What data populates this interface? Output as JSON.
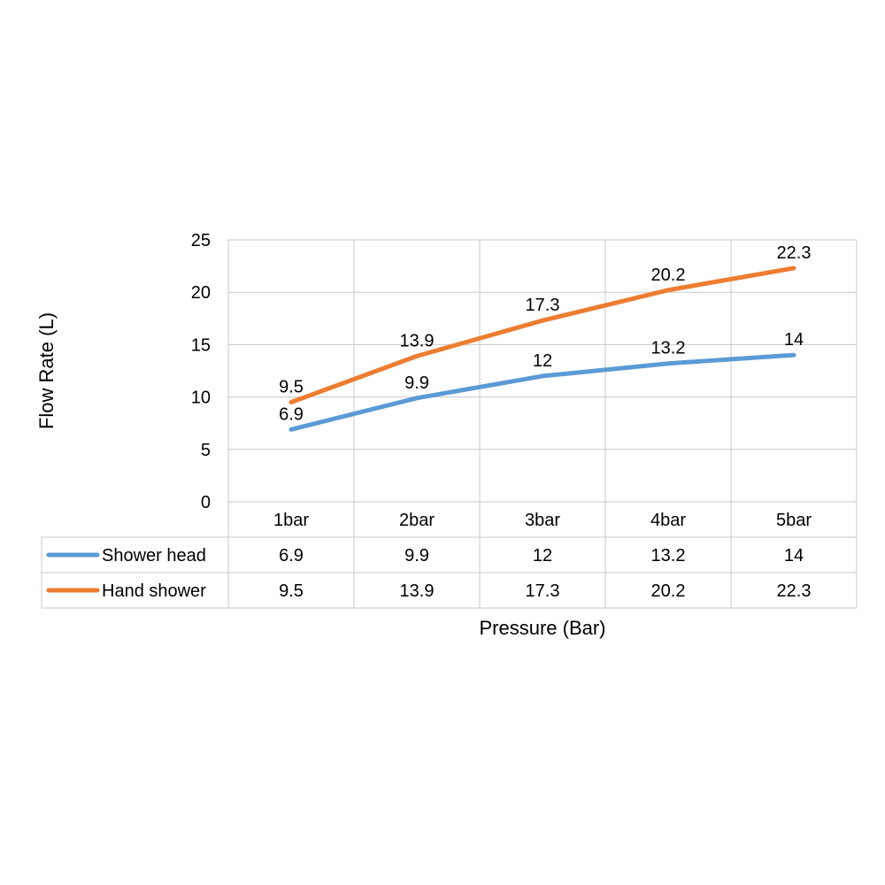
{
  "chart_data": {
    "type": "line",
    "title": "",
    "xlabel": "Pressure (Bar)",
    "ylabel": "Flow Rate (L)",
    "categories": [
      "1bar",
      "2bar",
      "3bar",
      "4bar",
      "5bar"
    ],
    "ylim": [
      0,
      25
    ],
    "yticks": [
      "0",
      "5",
      "10",
      "15",
      "20",
      "25"
    ],
    "grid": true,
    "legend_placement": "data-table-bottom",
    "series": [
      {
        "name": "Shower head",
        "color": "#5b9bd5",
        "values": [
          6.9,
          9.9,
          12,
          13.2,
          14
        ],
        "labels": [
          "6.9",
          "9.9",
          "12",
          "13.2",
          "14"
        ]
      },
      {
        "name": "Hand shower",
        "color": "#ed7d31",
        "values": [
          9.5,
          13.9,
          17.3,
          20.2,
          22.3
        ],
        "labels": [
          "9.5",
          "13.9",
          "17.3",
          "20.2",
          "22.3"
        ]
      }
    ]
  }
}
